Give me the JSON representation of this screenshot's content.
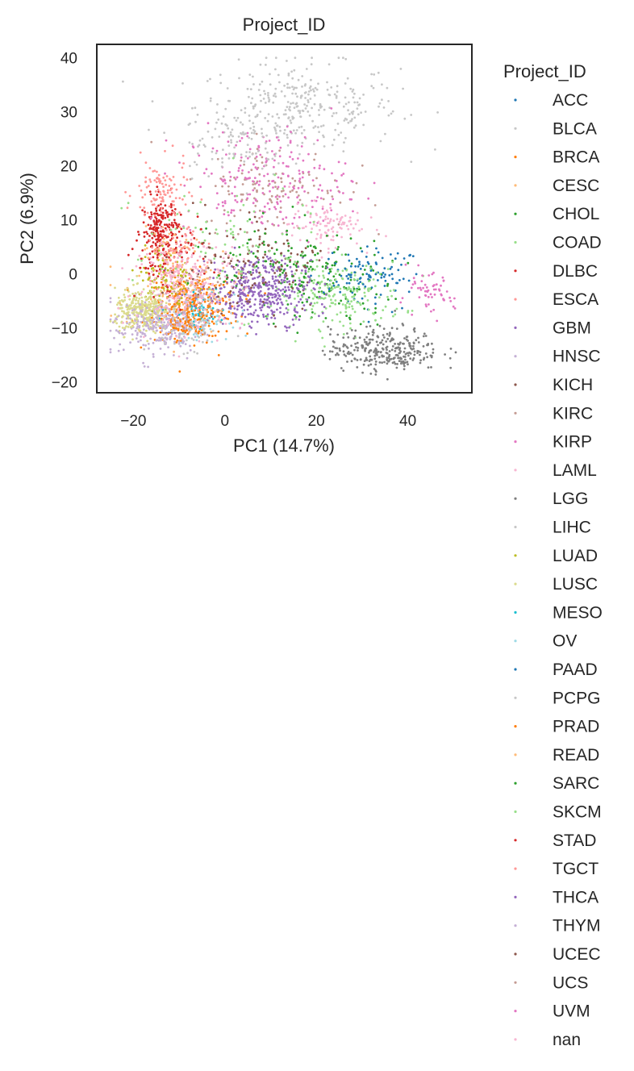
{
  "chart_data": {
    "type": "scatter",
    "title": "Project_ID",
    "xlabel": "PC1 (14.7%)",
    "ylabel": "PC2 (6.9%)",
    "xlim": [
      -28,
      54
    ],
    "ylim": [
      -22,
      42.5
    ],
    "xticks": [
      -20,
      0,
      20,
      40
    ],
    "yticks": [
      -20,
      -10,
      0,
      10,
      20,
      30,
      40
    ],
    "xtick_labels": [
      "−20",
      "0",
      "20",
      "40"
    ],
    "ytick_labels": [
      "−20",
      "−10",
      "0",
      "10",
      "20",
      "30",
      "40"
    ],
    "grid": false,
    "legend": {
      "title": "Project_ID",
      "placement": "outside-right"
    },
    "series": [
      {
        "name": "ACC",
        "color": "#1f77b4",
        "center": [
          33,
          -1
        ],
        "spread": [
          5,
          3
        ],
        "n": 70
      },
      {
        "name": "BLCA",
        "color": "#c7c7c7",
        "center": [
          16,
          31
        ],
        "spread": [
          11,
          4
        ],
        "n": 320
      },
      {
        "name": "BRCA",
        "color": "#ff7f0e",
        "center": [
          -7,
          -6
        ],
        "spread": [
          5,
          3
        ],
        "n": 260
      },
      {
        "name": "CESC",
        "color": "#ffbb78",
        "center": [
          -10,
          -3
        ],
        "spread": [
          6,
          4
        ],
        "n": 120
      },
      {
        "name": "CHOL",
        "color": "#2ca02c",
        "center": [
          20,
          -2
        ],
        "spread": [
          9,
          4
        ],
        "n": 110
      },
      {
        "name": "COAD",
        "color": "#98df8a",
        "center": [
          25,
          -4
        ],
        "spread": [
          7,
          3
        ],
        "n": 200
      },
      {
        "name": "DLBC",
        "color": "#d62728",
        "center": [
          -14,
          8
        ],
        "spread": [
          2,
          3
        ],
        "n": 200
      },
      {
        "name": "ESCA",
        "color": "#ff9896",
        "center": [
          -14,
          15
        ],
        "spread": [
          3,
          3
        ],
        "n": 100
      },
      {
        "name": "GBM",
        "color": "#9467bd",
        "center": [
          5,
          -3
        ],
        "spread": [
          6,
          3
        ],
        "n": 180
      },
      {
        "name": "HNSC",
        "color": "#c5b0d5",
        "center": [
          -15,
          -10
        ],
        "spread": [
          5,
          3
        ],
        "n": 150
      },
      {
        "name": "KICH",
        "color": "#8c564b",
        "center": [
          9,
          3
        ],
        "spread": [
          7,
          5
        ],
        "n": 60
      },
      {
        "name": "KIRC",
        "color": "#c49c94",
        "center": [
          11,
          16
        ],
        "spread": [
          8,
          4
        ],
        "n": 120
      },
      {
        "name": "KIRP",
        "color": "#e377c2",
        "center": [
          9,
          17
        ],
        "spread": [
          9,
          5
        ],
        "n": 220
      },
      {
        "name": "LAML",
        "color": "#f7b6d2",
        "center": [
          22,
          9
        ],
        "spread": [
          4,
          2
        ],
        "n": 100
      },
      {
        "name": "LGG",
        "color": "#7f7f7f",
        "center": [
          35,
          -14
        ],
        "spread": [
          6,
          2
        ],
        "n": 300
      },
      {
        "name": "LIHC",
        "color": "#c7c7c7",
        "center": [
          1,
          24
        ],
        "spread": [
          6,
          3
        ],
        "n": 80
      },
      {
        "name": "LUAD",
        "color": "#bcbd22",
        "center": [
          -13,
          -1
        ],
        "spread": [
          3,
          3
        ],
        "n": 100
      },
      {
        "name": "LUSC",
        "color": "#dbdb8d",
        "center": [
          -18,
          -7
        ],
        "spread": [
          3,
          2
        ],
        "n": 280
      },
      {
        "name": "MESO",
        "color": "#17becf",
        "center": [
          -6,
          -6
        ],
        "spread": [
          3,
          2
        ],
        "n": 40
      },
      {
        "name": "OV",
        "color": "#9edae5",
        "center": [
          -5,
          -8
        ],
        "spread": [
          3,
          2
        ],
        "n": 60
      },
      {
        "name": "PAAD",
        "color": "#1f77b4",
        "center": [
          30,
          0
        ],
        "spread": [
          4,
          2
        ],
        "n": 40
      },
      {
        "name": "PCPG",
        "color": "#c7c7c7",
        "center": [
          -8,
          -10
        ],
        "spread": [
          4,
          2
        ],
        "n": 80
      },
      {
        "name": "PRAD",
        "color": "#ff7f0e",
        "center": [
          -9,
          -9
        ],
        "spread": [
          3,
          2
        ],
        "n": 80
      },
      {
        "name": "READ",
        "color": "#ffbb78",
        "center": [
          -12,
          5
        ],
        "spread": [
          3,
          2
        ],
        "n": 40
      },
      {
        "name": "SARC",
        "color": "#2ca02c",
        "center": [
          14,
          2
        ],
        "spread": [
          8,
          4
        ],
        "n": 90
      },
      {
        "name": "SKCM",
        "color": "#98df8a",
        "center": [
          0,
          5
        ],
        "spread": [
          10,
          6
        ],
        "n": 90
      },
      {
        "name": "STAD",
        "color": "#d62728",
        "center": [
          -12,
          3
        ],
        "spread": [
          4,
          4
        ],
        "n": 70
      },
      {
        "name": "TGCT",
        "color": "#ff9896",
        "center": [
          -10,
          2
        ],
        "spread": [
          3,
          3
        ],
        "n": 80
      },
      {
        "name": "THCA",
        "color": "#9467bd",
        "center": [
          10,
          -3
        ],
        "spread": [
          5,
          3
        ],
        "n": 220
      },
      {
        "name": "THYM",
        "color": "#c5b0d5",
        "center": [
          -14,
          -9
        ],
        "spread": [
          4,
          2
        ],
        "n": 120
      },
      {
        "name": "UCEC",
        "color": "#8c564b",
        "center": [
          3,
          1
        ],
        "spread": [
          8,
          4
        ],
        "n": 70
      },
      {
        "name": "UCS",
        "color": "#c49c94",
        "center": [
          -6,
          -4
        ],
        "spread": [
          4,
          3
        ],
        "n": 50
      },
      {
        "name": "UVM",
        "color": "#e377c2",
        "center": [
          44,
          -4
        ],
        "spread": [
          3,
          2
        ],
        "n": 60
      },
      {
        "name": "nan",
        "color": "#f7b6d2",
        "center": [
          -8,
          -2
        ],
        "spread": [
          6,
          4
        ],
        "n": 220
      }
    ]
  }
}
